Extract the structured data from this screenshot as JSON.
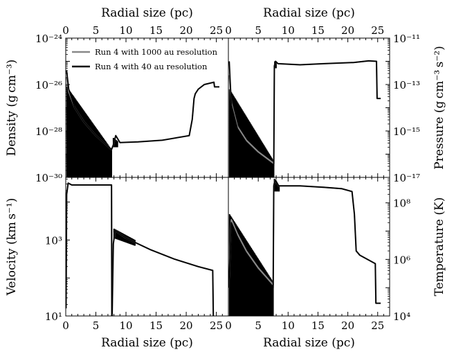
{
  "chart_data": {
    "type": "line",
    "legend": {
      "placement": "top-left of top-left panel",
      "entries": [
        {
          "label": "Run 4 with 1000 au resolution",
          "color": "#888888"
        },
        {
          "label": "Run 4 with 40 au resolution",
          "color": "#000000"
        }
      ]
    },
    "shared_x": {
      "label": "Radial size (pc)",
      "range": [
        0,
        27
      ],
      "ticks": [
        "0",
        "5",
        "10",
        "15",
        "20",
        "25"
      ]
    },
    "panels": [
      {
        "name": "density",
        "ylabel": "Density (g cm⁻³)",
        "ylog_range": [
          -30,
          -24
        ],
        "yticks": [
          {
            "exp": -30,
            "label": "10⁻³⁰"
          },
          {
            "exp": -28,
            "label": "10⁻²⁸"
          },
          {
            "exp": -26,
            "label": "10⁻²⁶"
          },
          {
            "exp": -24,
            "label": "10⁻²⁴"
          }
        ],
        "xlim": [
          0,
          25.5
        ],
        "series": [
          {
            "color": "#888888",
            "x": [
              0.15,
              0.5,
              1.5,
              3,
              5,
              7.6,
              7.9,
              8.3,
              9,
              12,
              16,
              20.5,
              21,
              21.3,
              21.5,
              22,
              23,
              24.6,
              24.7,
              25.5
            ],
            "y": [
              -25.7,
              -26.3,
              -27.0,
              -27.6,
              -28.2,
              -28.8,
              -28.6,
              -28.2,
              -28.5,
              -28.47,
              -28.4,
              -28.2,
              -27.5,
              -26.6,
              -26.4,
              -26.2,
              -26.0,
              -25.9,
              -26.1,
              -26.1
            ]
          },
          {
            "color": "#000000",
            "x": [
              0.15,
              0.5,
              1.5,
              3,
              5,
              7.6,
              7.9,
              8.3,
              9,
              12,
              16,
              20.5,
              21,
              21.3,
              21.5,
              22,
              23,
              24.6,
              24.7,
              25.5
            ],
            "y": [
              -25.4,
              -26.2,
              -27.0,
              -27.6,
              -28.2,
              -28.8,
              -28.6,
              -28.2,
              -28.5,
              -28.47,
              -28.4,
              -28.2,
              -27.5,
              -26.6,
              -26.4,
              -26.2,
              -26.0,
              -25.9,
              -26.1,
              -26.1
            ]
          }
        ]
      },
      {
        "name": "pressure",
        "ylabel": "Pressure (g cm⁻³ s⁻²)",
        "ylog_range": [
          -17,
          -11
        ],
        "yticks": [
          {
            "exp": -17,
            "label": "10⁻¹⁷"
          },
          {
            "exp": -15,
            "label": "10⁻¹⁵"
          },
          {
            "exp": -13,
            "label": "10⁻¹³"
          },
          {
            "exp": -11,
            "label": "10⁻¹¹"
          }
        ],
        "xlim": [
          0,
          25.5
        ],
        "series": [
          {
            "color": "#888888",
            "x": [
              0.15,
              0.5,
              1.5,
              3,
              5,
              7.6,
              7.7,
              7.9,
              8.3,
              12,
              16,
              21,
              23.5,
              24.8,
              24.9,
              25.5
            ],
            "y": [
              -12.6,
              -13.8,
              -14.8,
              -15.4,
              -15.9,
              -16.4,
              -12.2,
              -12.0,
              -12.1,
              -12.15,
              -12.1,
              -12.05,
              -11.98,
              -12.0,
              -13.6,
              -13.6
            ]
          },
          {
            "color": "#000000",
            "x": [
              0.15,
              0.5,
              1.5,
              3,
              5,
              7.6,
              7.7,
              7.9,
              8.3,
              12,
              16,
              21,
              23.5,
              24.8,
              24.9,
              25.5
            ],
            "y": [
              -12.0,
              -13.9,
              -14.9,
              -15.5,
              -16.0,
              -16.5,
              -12.2,
              -12.0,
              -12.1,
              -12.15,
              -12.1,
              -12.05,
              -11.98,
              -12.0,
              -13.6,
              -13.6
            ]
          }
        ]
      },
      {
        "name": "velocity",
        "ylabel": "Velocity (km s⁻¹)",
        "ylog_range": [
          1,
          4.65
        ],
        "yticks": [
          {
            "exp": 1,
            "label": "10¹"
          },
          {
            "exp": 3,
            "label": "10³"
          }
        ],
        "xlim": [
          0,
          24.6
        ],
        "series": [
          {
            "color": "#888888",
            "x": [
              0.05,
              0.15,
              0.4,
              1,
              4,
              7.6,
              7.65,
              7.7,
              7.9,
              8.2,
              10,
              14,
              18,
              22,
              24.4,
              24.5
            ],
            "y": [
              1.2,
              4.2,
              4.5,
              4.45,
              4.45,
              4.45,
              1.0,
              1.0,
              2.9,
              3.25,
              3.05,
              2.75,
              2.5,
              2.3,
              2.2,
              1.0
            ]
          },
          {
            "color": "#000000",
            "x": [
              0.05,
              0.15,
              0.4,
              1,
              4,
              7.6,
              7.65,
              7.7,
              7.9,
              8.2,
              10,
              14,
              18,
              22,
              24.4,
              24.5
            ],
            "y": [
              1.2,
              4.2,
              4.5,
              4.45,
              4.45,
              4.45,
              1.0,
              1.0,
              2.9,
              3.25,
              3.05,
              2.75,
              2.5,
              2.3,
              2.2,
              1.0
            ]
          }
        ]
      },
      {
        "name": "temperature",
        "ylabel": "Temperature (K)",
        "ylog_range": [
          4,
          8.9
        ],
        "yticks": [
          {
            "exp": 4,
            "label": "10⁴"
          },
          {
            "exp": 6,
            "label": "10⁶"
          },
          {
            "exp": 8,
            "label": "10⁸"
          }
        ],
        "xlim": [
          0,
          25.5
        ],
        "series": [
          {
            "color": "#888888",
            "x": [
              0.05,
              0.5,
              1.5,
              3,
              5,
              7.5,
              7.6,
              7.7,
              7.9,
              8.4,
              12,
              16,
              19,
              20.7,
              21.1,
              21.4,
              22,
              24.6,
              24.7,
              25.5
            ],
            "y": [
              5.0,
              7.4,
              6.9,
              6.3,
              5.7,
              5.1,
              8.6,
              8.7,
              8.8,
              8.6,
              8.6,
              8.55,
              8.5,
              8.4,
              7.6,
              6.3,
              6.15,
              5.85,
              4.45,
              4.45
            ]
          },
          {
            "color": "#000000",
            "x": [
              0.05,
              0.5,
              1.5,
              3,
              5,
              7.5,
              7.6,
              7.7,
              7.9,
              8.4,
              12,
              16,
              19,
              20.7,
              21.1,
              21.4,
              22,
              24.6,
              24.7,
              25.5
            ],
            "y": [
              5.0,
              7.3,
              6.8,
              6.2,
              5.6,
              5.0,
              8.6,
              8.7,
              8.8,
              8.6,
              8.6,
              8.55,
              8.5,
              8.4,
              7.6,
              6.3,
              6.15,
              5.85,
              4.45,
              4.45
            ]
          }
        ]
      }
    ],
    "oscillation_bands": [
      {
        "panel": "density",
        "x0": 0.2,
        "x1": 7.6,
        "bottom": -30,
        "top_start": -26.1,
        "top_end": -28.8
      },
      {
        "panel": "density",
        "x0": 7.9,
        "x1": 8.6,
        "bottom": -28.7,
        "top_start": -28.3,
        "top_end": -28.45
      },
      {
        "panel": "pressure",
        "x0": 0.2,
        "x1": 7.6,
        "bottom": -17,
        "top_start": -13.2,
        "top_end": -16.3
      },
      {
        "panel": "pressure",
        "x0": 7.75,
        "x1": 8.0,
        "bottom": -12.3,
        "top_start": -12.0,
        "top_end": -12.0
      },
      {
        "panel": "velocity",
        "x0": 8.0,
        "x1": 11.5,
        "bottom_start": 3.05,
        "bottom_end": 2.85,
        "top_start": 3.3,
        "top_end": 3.0
      },
      {
        "panel": "temperature",
        "x0": 0.2,
        "x1": 7.5,
        "bottom": 4.0,
        "top_start": 7.6,
        "top_end": 5.2
      },
      {
        "panel": "temperature",
        "x0": 7.7,
        "x1": 8.5,
        "bottom": 8.4,
        "top_start": 8.85,
        "top_end": 8.6
      }
    ]
  }
}
